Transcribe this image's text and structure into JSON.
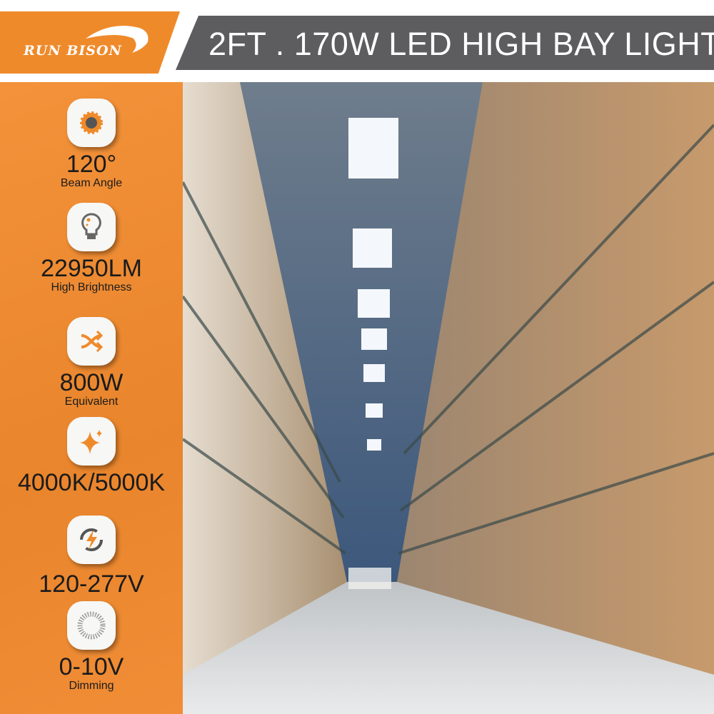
{
  "brand": {
    "name": "RUN BISON",
    "color": "#ef8a2b"
  },
  "title": "2FT . 170W LED HIGH BAY LIGHT",
  "features": [
    {
      "icon": "sun-icon",
      "value": "120°",
      "label": "Beam Angle"
    },
    {
      "icon": "light-bulb-icon",
      "value": "22950LM",
      "label": "High Brightness"
    },
    {
      "icon": "shuffle-arrows-icon",
      "value": "800W",
      "label": "Equivalent"
    },
    {
      "icon": "sparkle-icon",
      "value": "4000K/5000K",
      "label": ""
    },
    {
      "icon": "power-bolt-icon",
      "value": "120-277V",
      "label": ""
    },
    {
      "icon": "dimmer-icon",
      "value": "0-10V",
      "label": "Dimming"
    }
  ]
}
